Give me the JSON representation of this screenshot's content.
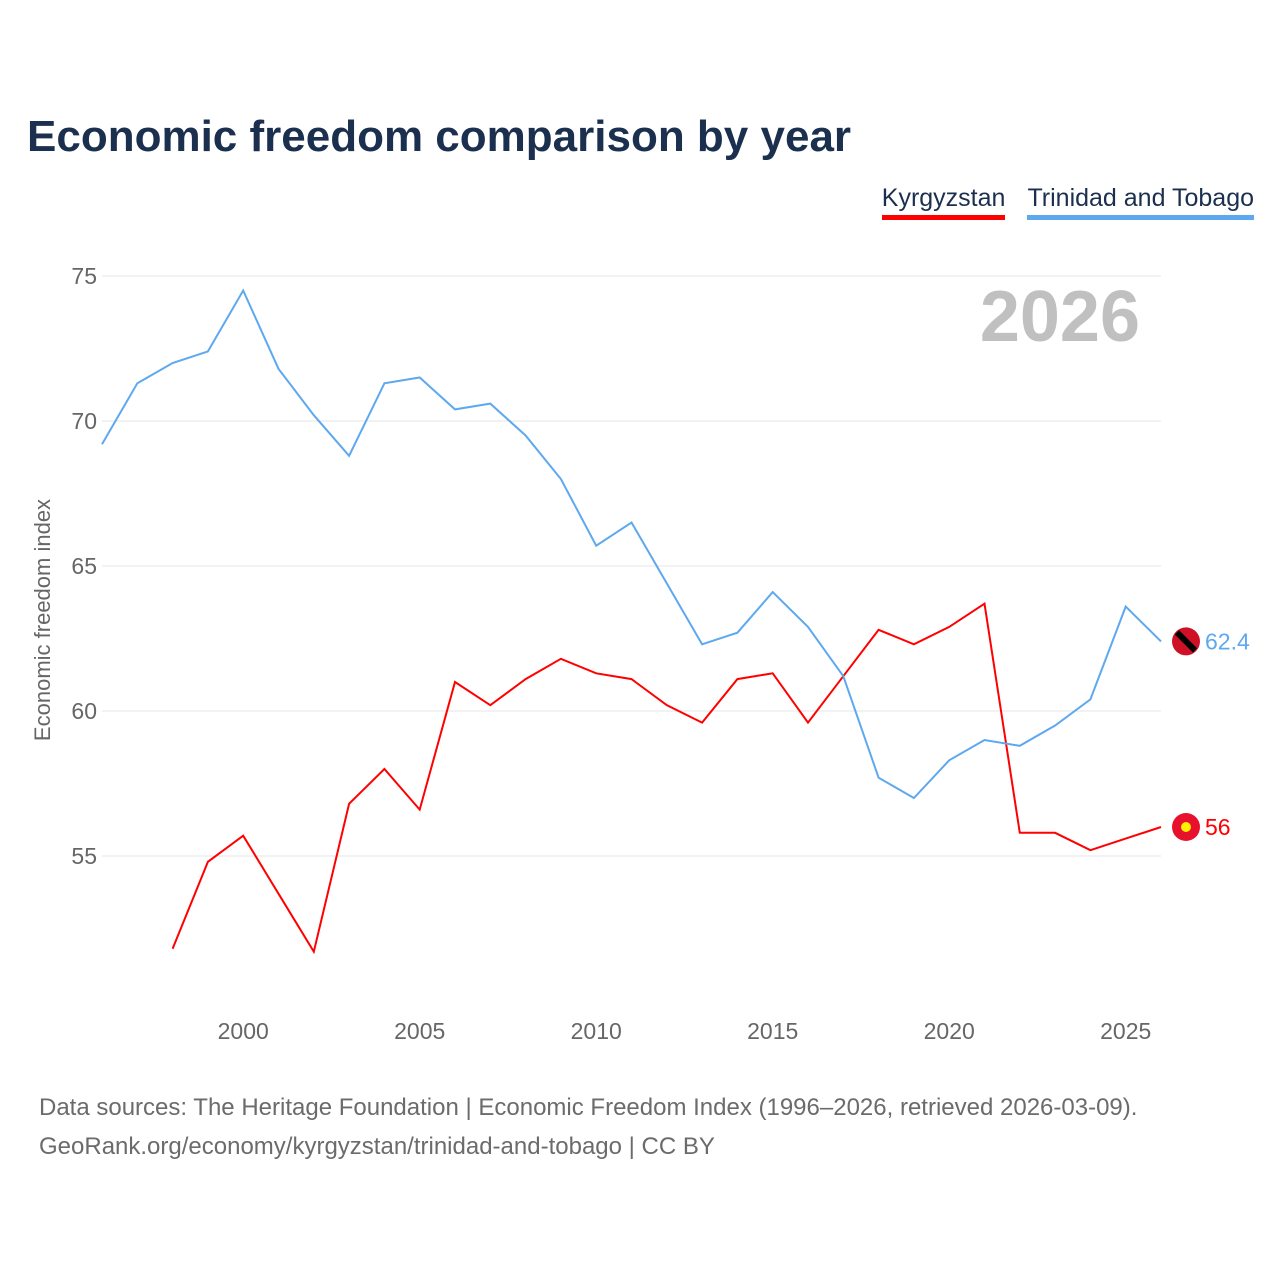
{
  "chart_data": {
    "type": "line",
    "title": "Economic freedom comparison by year",
    "ylabel": "Economic freedom index",
    "xlabel": "",
    "xlim": [
      1996,
      2026
    ],
    "ylim": [
      50,
      76
    ],
    "yticks": [
      55,
      60,
      65,
      70,
      75
    ],
    "xticks": [
      2000,
      2005,
      2010,
      2015,
      2020,
      2025
    ],
    "grid": true,
    "legend_position": "top-right",
    "year_label": "2026",
    "series": [
      {
        "name": "Kyrgyzstan",
        "color": "#ff0000",
        "end_label": "56",
        "x": [
          1998,
          1999,
          2000,
          2001,
          2002,
          2003,
          2004,
          2005,
          2006,
          2007,
          2008,
          2009,
          2010,
          2011,
          2012,
          2013,
          2014,
          2015,
          2016,
          2017,
          2018,
          2019,
          2020,
          2021,
          2022,
          2023,
          2024,
          2025,
          2026
        ],
        "values": [
          51.8,
          54.8,
          55.7,
          53.7,
          51.7,
          56.8,
          58.0,
          56.6,
          61.0,
          60.2,
          61.1,
          61.8,
          61.3,
          61.1,
          60.2,
          59.6,
          61.1,
          61.3,
          59.6,
          61.2,
          62.8,
          62.3,
          62.9,
          63.7,
          55.8,
          55.8,
          55.2,
          55.6,
          56.0
        ]
      },
      {
        "name": "Trinidad and Tobago",
        "color": "#5ea8ef",
        "end_label": "62.4",
        "x": [
          1996,
          1997,
          1998,
          1999,
          2000,
          2001,
          2002,
          2003,
          2004,
          2005,
          2006,
          2007,
          2008,
          2009,
          2010,
          2011,
          2012,
          2013,
          2014,
          2015,
          2016,
          2017,
          2018,
          2019,
          2020,
          2021,
          2022,
          2023,
          2024,
          2025,
          2026
        ],
        "values": [
          69.2,
          71.3,
          72.0,
          72.4,
          74.5,
          71.8,
          70.2,
          68.8,
          71.3,
          71.5,
          70.4,
          70.6,
          69.5,
          68.0,
          65.7,
          66.5,
          64.4,
          62.3,
          62.7,
          64.1,
          62.9,
          61.2,
          57.7,
          57.0,
          58.3,
          59.0,
          58.8,
          59.5,
          60.4,
          63.6,
          62.4
        ]
      }
    ]
  },
  "footer": {
    "line1": "Data sources: The Heritage Foundation | Economic Freedom Index (1996–2026, retrieved 2026-03-09).",
    "line2": "GeoRank.org/economy/kyrgyzstan/trinidad-and-tobago | CC BY"
  }
}
